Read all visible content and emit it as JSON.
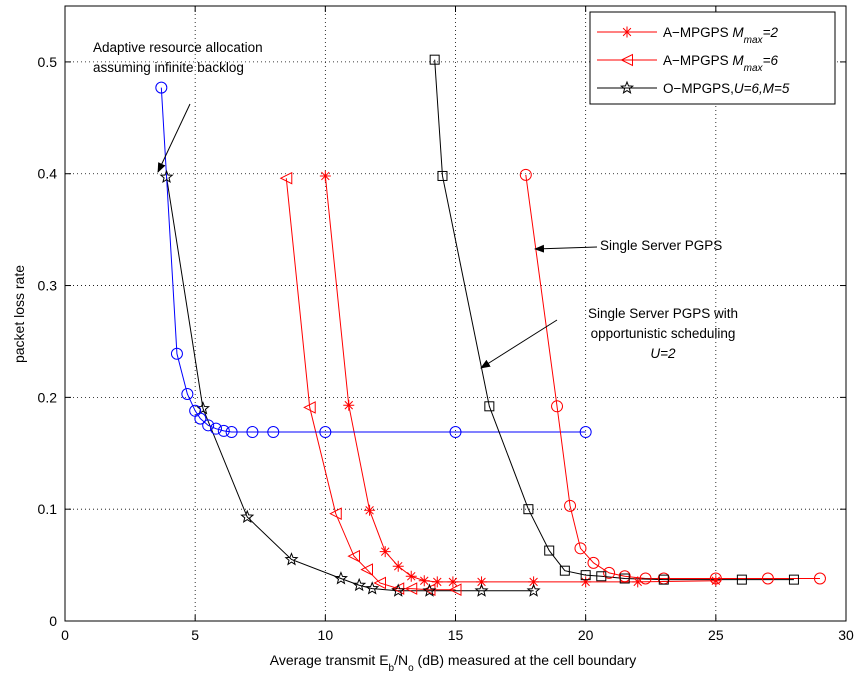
{
  "chart_data": {
    "type": "line",
    "xlabel_parts": {
      "pre": "Average transmit E",
      "sub1": "b",
      "mid": "/N",
      "sub2": "o",
      "post": " (dB) measured at the cell boundary"
    },
    "ylabel": "packet loss rate",
    "xlim": [
      0,
      30
    ],
    "ylim": [
      0,
      0.55
    ],
    "xticks": [
      0,
      5,
      10,
      15,
      20,
      25,
      30
    ],
    "yticks": [
      0,
      0.1,
      0.2,
      0.3,
      0.4,
      0.5
    ],
    "xtick_labels": [
      "0",
      "5",
      "10",
      "15",
      "20",
      "25",
      "30"
    ],
    "ytick_labels": [
      "0",
      "0.1",
      "0.2",
      "0.3",
      "0.4",
      "0.5"
    ],
    "grid": true,
    "legend_position": "top-right",
    "legend": [
      {
        "prefix": "A−MPGPS ",
        "var": "M",
        "sub": "max",
        "suffix": "=2",
        "marker": "asterisk",
        "color": "#ff0000"
      },
      {
        "prefix": "A−MPGPS ",
        "var": "M",
        "sub": "max",
        "suffix": "=6",
        "marker": "triangle-left",
        "color": "#ff0000"
      },
      {
        "prefix": "O−MPGPS,",
        "var": "U",
        "sub": "",
        "suffix": "=6,M=5",
        "marker": "star",
        "color": "#000000"
      }
    ],
    "series": [
      {
        "legend_index": 0,
        "marker": "asterisk",
        "color": "#ff0000",
        "x": [
          10.0,
          10.9,
          11.7,
          12.3,
          12.8,
          13.3,
          13.8,
          14.3,
          14.9,
          16.0,
          18.0,
          20.0,
          22.0,
          25.0
        ],
        "y": [
          0.398,
          0.193,
          0.099,
          0.062,
          0.049,
          0.04,
          0.036,
          0.035,
          0.035,
          0.035,
          0.035,
          0.035,
          0.035,
          0.036
        ]
      },
      {
        "legend_index": 1,
        "marker": "triangle-left",
        "color": "#ff0000",
        "x": [
          8.5,
          9.4,
          10.4,
          11.1,
          11.6,
          12.1,
          12.8,
          13.3,
          14.0,
          15.0
        ],
        "y": [
          0.396,
          0.191,
          0.096,
          0.058,
          0.046,
          0.034,
          0.029,
          0.029,
          0.028,
          0.028
        ]
      },
      {
        "legend_index": 2,
        "marker": "star",
        "color": "#000000",
        "x": [
          3.9,
          5.3,
          7.0,
          8.7,
          10.6,
          11.3,
          11.8,
          12.8,
          14.0,
          16.0,
          18.0
        ],
        "y": [
          0.397,
          0.19,
          0.093,
          0.055,
          0.038,
          0.032,
          0.029,
          0.027,
          0.027,
          0.027,
          0.027
        ]
      },
      {
        "name": "Adaptive resource allocation assuming infinite backlog",
        "marker": "circle",
        "color": "#0000ff",
        "x": [
          3.7,
          4.3,
          4.7,
          5.0,
          5.2,
          5.5,
          5.8,
          6.1,
          6.4,
          7.2,
          8.0,
          10.0,
          15.0,
          20.0
        ],
        "y": [
          0.477,
          0.239,
          0.203,
          0.188,
          0.181,
          0.175,
          0.172,
          0.17,
          0.169,
          0.169,
          0.169,
          0.169,
          0.169,
          0.169
        ]
      },
      {
        "name": "Single Server PGPS",
        "marker": "circle",
        "color": "#ff0000",
        "x": [
          17.7,
          18.9,
          19.4,
          19.8,
          20.3,
          20.9,
          21.5,
          22.3,
          23.0,
          25.0,
          27.0,
          29.0
        ],
        "y": [
          0.399,
          0.192,
          0.103,
          0.065,
          0.052,
          0.043,
          0.04,
          0.038,
          0.038,
          0.038,
          0.038,
          0.038
        ]
      },
      {
        "name": "Single Server PGPS with opportunistic scheduling U=2",
        "marker": "square",
        "color": "#000000",
        "x": [
          14.2,
          14.5,
          16.3,
          17.8,
          18.6,
          19.2,
          20.0,
          20.6,
          21.5,
          23.0,
          26.0,
          28.0
        ],
        "y": [
          0.502,
          0.398,
          0.192,
          0.1,
          0.063,
          0.045,
          0.041,
          0.04,
          0.038,
          0.037,
          0.037,
          0.037
        ]
      }
    ],
    "annotations": {
      "adaptive_line1": "Adaptive resource allocation",
      "adaptive_line2": "assuming infinite backlog",
      "single_server": "Single Server PGPS",
      "opp_line1": "Single Server PGPS with",
      "opp_line2": "opportunistic scheduling",
      "opp_line3": "U=2"
    }
  }
}
